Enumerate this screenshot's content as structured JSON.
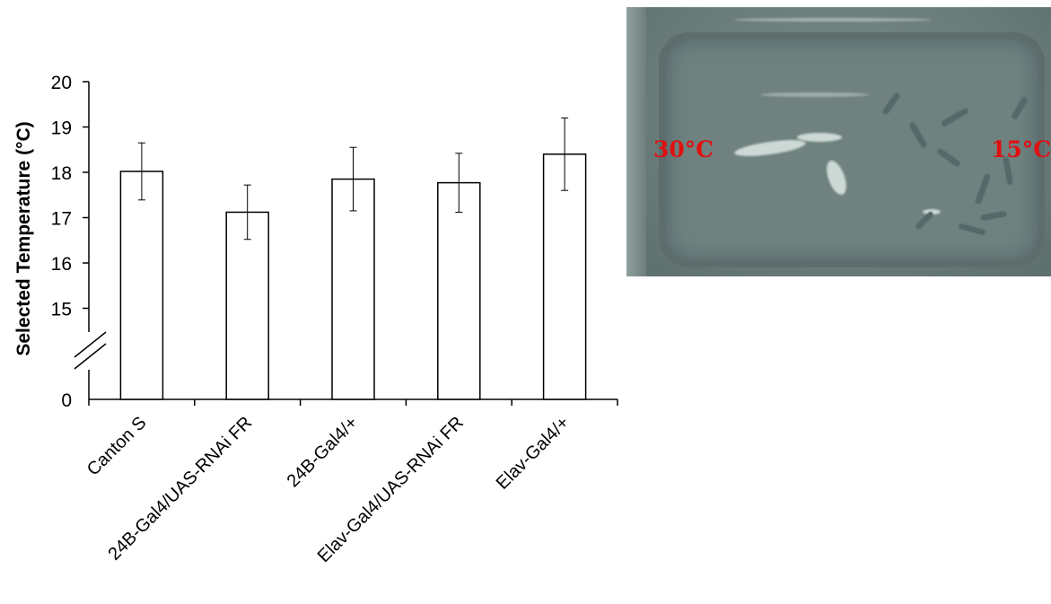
{
  "chart_data": {
    "type": "bar",
    "ylabel": "Selected Temperature (°C)",
    "xlabel": "",
    "categories": [
      "Canton S",
      "24B-Gal4/UAS-RNAi FR",
      "24B-Gal4/+",
      "Elav-Gal4/UAS-RNAi FR",
      "Elav-Gal4/+"
    ],
    "values": [
      18.02,
      17.12,
      17.85,
      17.77,
      18.4
    ],
    "error": [
      0.63,
      0.6,
      0.7,
      0.65,
      0.8
    ],
    "ylim": [
      14,
      20
    ],
    "yticks": [
      {
        "value": 15,
        "label": "15"
      },
      {
        "value": 16,
        "label": "16"
      },
      {
        "value": 17,
        "label": "17"
      },
      {
        "value": 18,
        "label": "18"
      },
      {
        "value": 19,
        "label": "19"
      },
      {
        "value": 20,
        "label": "20"
      }
    ],
    "axis_break_label": "0",
    "grid": false,
    "legend": "none",
    "bar_fill": "#ffffff",
    "bar_stroke": "#000000"
  },
  "photo": {
    "left_temp_label": "30°C",
    "right_temp_label": "15°C",
    "label_color": "#e01010"
  }
}
